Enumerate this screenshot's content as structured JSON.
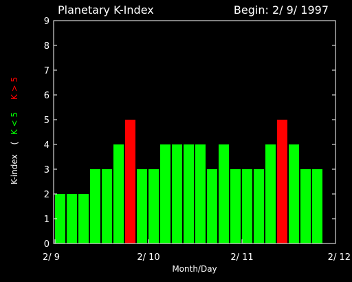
{
  "chart_data": {
    "type": "bar",
    "title": "Planetary K-Index",
    "subtitle": "Begin: 2/ 9/ 1997",
    "xlabel": "Month/Day",
    "ylabel_prefix": "K-index",
    "legend_open": "(",
    "legend_low": "K < 5",
    "legend_high": "K > 5",
    "ylim": [
      0,
      9
    ],
    "yticks": [
      "0",
      "1",
      "2",
      "3",
      "4",
      "5",
      "6",
      "7",
      "8",
      "9"
    ],
    "xtick_labels": [
      "2/ 9",
      "2/ 10",
      "2/ 11",
      "2/ 12"
    ],
    "bars_per_day": 8,
    "threshold": 5,
    "values": [
      2,
      2,
      2,
      3,
      3,
      4,
      5,
      3,
      3,
      4,
      4,
      4,
      4,
      3,
      4,
      3,
      3,
      3,
      4,
      5,
      4,
      3,
      3
    ],
    "colors": {
      "low": "#00ff00",
      "high": "#ff0000",
      "axis": "#ffffff",
      "background": "#000000"
    }
  }
}
